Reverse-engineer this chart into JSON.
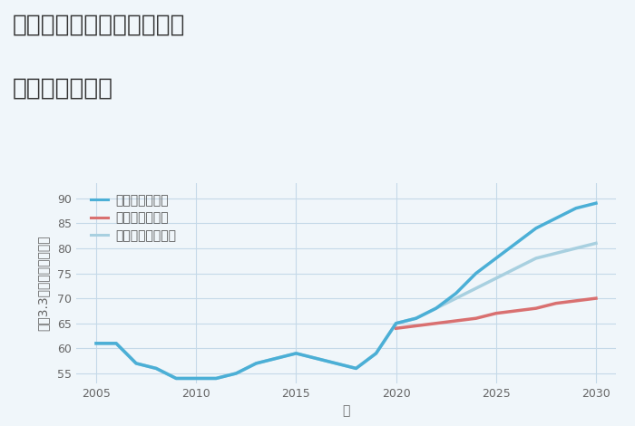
{
  "title_line1": "神奈川県伊勢原市下平間の",
  "title_line2": "土地の価格推移",
  "xlabel": "年",
  "ylabel": "平（3.3㎡）単価（万円）",
  "ylim": [
    53,
    93
  ],
  "yticks": [
    55,
    60,
    65,
    70,
    75,
    80,
    85,
    90
  ],
  "xlim": [
    2004,
    2031
  ],
  "xticks": [
    2005,
    2010,
    2015,
    2020,
    2025,
    2030
  ],
  "background_color": "#f0f6fa",
  "plot_bg_color": "#f0f6fa",
  "grid_color": "#c5d9e8",
  "scenarios": {
    "good": {
      "label": "グッドシナリオ",
      "color": "#4bafd6",
      "linewidth": 2.5,
      "x": [
        2005,
        2006,
        2007,
        2008,
        2009,
        2010,
        2011,
        2012,
        2013,
        2014,
        2015,
        2016,
        2017,
        2018,
        2019,
        2020,
        2021,
        2022,
        2023,
        2024,
        2025,
        2026,
        2027,
        2028,
        2029,
        2030
      ],
      "y": [
        61,
        61,
        57,
        56,
        54,
        54,
        54,
        55,
        57,
        58,
        59,
        58,
        57,
        56,
        59,
        65,
        66,
        68,
        71,
        75,
        78,
        81,
        84,
        86,
        88,
        89
      ]
    },
    "bad": {
      "label": "バッドシナリオ",
      "color": "#d97070",
      "linewidth": 2.5,
      "x": [
        2020,
        2021,
        2022,
        2023,
        2024,
        2025,
        2026,
        2027,
        2028,
        2029,
        2030
      ],
      "y": [
        64,
        64.5,
        65,
        65.5,
        66,
        67,
        67.5,
        68,
        69,
        69.5,
        70
      ]
    },
    "normal": {
      "label": "ノーマルシナリオ",
      "color": "#a8d0e0",
      "linewidth": 2.5,
      "x": [
        2005,
        2006,
        2007,
        2008,
        2009,
        2010,
        2011,
        2012,
        2013,
        2014,
        2015,
        2016,
        2017,
        2018,
        2019,
        2020,
        2021,
        2022,
        2023,
        2024,
        2025,
        2026,
        2027,
        2028,
        2029,
        2030
      ],
      "y": [
        61,
        61,
        57,
        56,
        54,
        54,
        54,
        55,
        57,
        58,
        59,
        58,
        57,
        56,
        59,
        65,
        66,
        68,
        70,
        72,
        74,
        76,
        78,
        79,
        80,
        81
      ]
    }
  },
  "title_fontsize": 19,
  "axis_label_fontsize": 10,
  "tick_fontsize": 9,
  "legend_fontsize": 10
}
